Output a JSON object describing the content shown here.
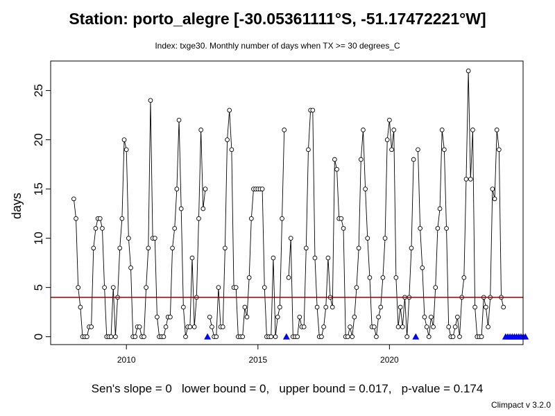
{
  "title": "Station: porto_alegre [-30.05361111°S, -51.17472221°W]",
  "subtitle": "Index: txge30. Monthly number of days when TX >= 30 degrees_C",
  "footer": "Sen's slope = 0   lower bound = 0,   upper bound = 0.017,   p-value = 0.174",
  "credit": "Climpact v 3.2.0",
  "chart_data": {
    "type": "line",
    "ylabel": "days",
    "xlim": [
      2007.12,
      2025.08
    ],
    "ylim": [
      -0.8,
      28
    ],
    "x_ticks": [
      2010,
      2015,
      2020
    ],
    "y_ticks": [
      0,
      5,
      10,
      15,
      20,
      25
    ],
    "start": [
      2008,
      1
    ],
    "colors": {
      "line": "#000000",
      "mean_line": "#990000",
      "missing_marker": "#0000ff"
    },
    "mean_line": 4,
    "values": [
      14,
      12,
      5,
      3,
      0,
      0,
      0,
      1,
      1,
      9,
      11,
      12,
      12,
      11,
      5,
      0,
      0,
      0,
      5,
      0,
      4,
      9,
      12,
      20,
      19,
      10,
      7,
      0,
      0,
      1,
      1,
      0,
      0,
      5,
      9,
      24,
      10,
      10,
      2,
      0,
      0,
      0,
      1,
      2,
      2,
      9,
      11,
      15,
      22,
      13,
      3,
      0,
      1,
      1,
      8,
      1,
      4,
      12,
      21,
      13,
      15,
      null,
      2,
      1,
      0,
      0,
      5,
      1,
      1,
      9,
      20,
      23,
      19,
      5,
      5,
      0,
      0,
      0,
      3,
      2,
      6,
      12,
      15,
      15,
      15,
      15,
      15,
      5,
      0,
      0,
      0,
      8,
      0,
      2,
      3,
      12,
      21,
      null,
      6,
      10,
      0,
      0,
      0,
      2,
      1,
      1,
      9,
      19,
      23,
      23,
      8,
      3,
      0,
      0,
      1,
      3,
      8,
      4,
      3,
      18,
      17,
      12,
      12,
      11,
      0,
      0,
      1,
      0,
      2,
      5,
      9,
      18,
      21,
      15,
      10,
      6,
      1,
      1,
      0,
      2,
      3,
      6,
      10,
      20,
      22,
      19,
      21,
      6,
      1,
      3,
      1,
      4,
      0,
      4,
      9,
      18,
      null,
      19,
      11,
      7,
      2,
      1,
      0,
      2,
      1,
      5,
      11,
      13,
      21,
      19,
      11,
      1,
      0,
      0,
      1,
      2,
      0,
      4,
      6,
      16,
      27,
      16,
      21,
      3,
      0,
      0,
      0,
      4,
      3,
      1,
      4,
      15,
      14,
      21,
      19,
      4,
      3,
      null,
      null,
      null,
      null,
      null,
      null,
      null,
      null,
      null,
      null
    ]
  }
}
